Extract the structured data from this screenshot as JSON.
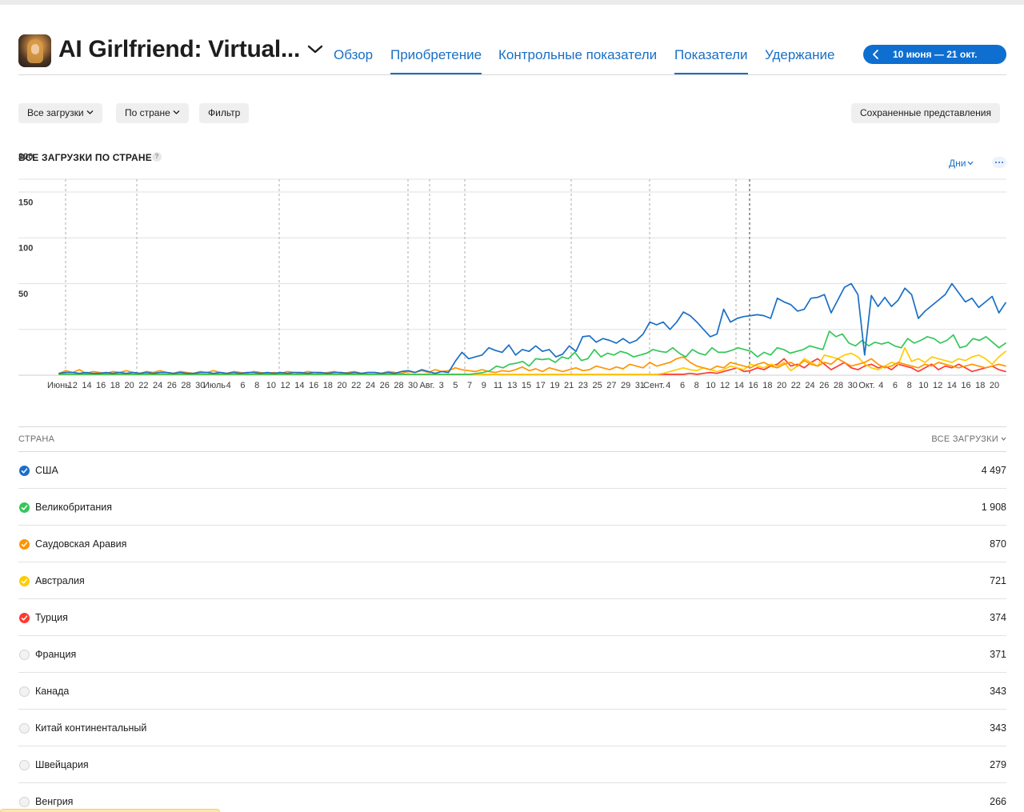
{
  "header": {
    "app_title": "AI Girlfriend: Virtual...",
    "tabs": [
      {
        "label": "Обзор",
        "active": false
      },
      {
        "label": "Приобретение",
        "active": true
      },
      {
        "label": "Контрольные показатели",
        "active": false
      },
      {
        "label": "Показатели",
        "active": true
      },
      {
        "label": "Удержание",
        "active": false
      }
    ],
    "date_range": "10 июня — 21 окт."
  },
  "toolbar": {
    "downloads_label": "Все загрузки",
    "by_country_label": "По стране",
    "filter_label": "Фильтр",
    "saved_views_label": "Сохраненные представления"
  },
  "section": {
    "title": "ВСЕ ЗАГРУЗКИ ПО СТРАНЕ",
    "help": "?",
    "granularity": "Дни"
  },
  "colors": {
    "accent": "#0e6fd1",
    "USA": "#1a6fc5",
    "UK": "#34c759",
    "Saudi": "#ff9500",
    "Australia": "#ffcc00",
    "Turkey": "#ff3b30"
  },
  "chart_data": {
    "type": "line",
    "ylim": [
      0,
      200
    ],
    "yticks": [
      200,
      150,
      100,
      50
    ],
    "x_start": "10 июня",
    "x_end": "21 окт.",
    "xticks": [
      "Июнь",
      "12",
      "14",
      "16",
      "18",
      "20",
      "22",
      "24",
      "26",
      "28",
      "30",
      "Июль",
      "4",
      "6",
      "8",
      "10",
      "12",
      "14",
      "16",
      "18",
      "20",
      "22",
      "24",
      "26",
      "28",
      "30",
      "Авг.",
      "3",
      "5",
      "7",
      "9",
      "11",
      "13",
      "15",
      "17",
      "19",
      "21",
      "23",
      "25",
      "27",
      "29",
      "31",
      "Сент.",
      "4",
      "6",
      "8",
      "10",
      "12",
      "14",
      "16",
      "18",
      "20",
      "22",
      "24",
      "26",
      "28",
      "30",
      "Окт.",
      "4",
      "6",
      "8",
      "10",
      "12",
      "14",
      "16",
      "18",
      "20"
    ],
    "series": [
      {
        "name": "США",
        "color": "#1a6fc5",
        "values": [
          2,
          3,
          3,
          2,
          3,
          2,
          2,
          3,
          2,
          3,
          2,
          3,
          2,
          3,
          2,
          3,
          3,
          2,
          3,
          2,
          2,
          3,
          3,
          2,
          3,
          2,
          3,
          2,
          3,
          3,
          2,
          3,
          2,
          3,
          2,
          3,
          3,
          2,
          3,
          3,
          2,
          3,
          3,
          2,
          3,
          2,
          3,
          3,
          2,
          3,
          2,
          4,
          5,
          3,
          6,
          4,
          2,
          4,
          3,
          15,
          25,
          18,
          20,
          22,
          30,
          27,
          25,
          33,
          22,
          28,
          26,
          32,
          26,
          28,
          20,
          23,
          32,
          26,
          42,
          43,
          36,
          40,
          38,
          35,
          40,
          35,
          38,
          45,
          58,
          55,
          58,
          50,
          58,
          69,
          65,
          58,
          50,
          42,
          45,
          72,
          58,
          62,
          64,
          65,
          66,
          65,
          62,
          84,
          80,
          77,
          70,
          72,
          84,
          85,
          88,
          68,
          82,
          96,
          100,
          88,
          22,
          87,
          75,
          85,
          75,
          82,
          95,
          88,
          62,
          70,
          76,
          82,
          88,
          100,
          90,
          80,
          84,
          74,
          80,
          86,
          68,
          79
        ]
      },
      {
        "name": "Великобритания",
        "color": "#34c759",
        "values": [
          1,
          1,
          1,
          1,
          1,
          1,
          1,
          1,
          1,
          1,
          1,
          1,
          1,
          1,
          1,
          1,
          1,
          1,
          1,
          1,
          1,
          1,
          1,
          1,
          1,
          1,
          1,
          1,
          1,
          1,
          1,
          1,
          1,
          1,
          1,
          1,
          1,
          1,
          1,
          1,
          1,
          1,
          1,
          1,
          1,
          1,
          1,
          1,
          1,
          1,
          1,
          1,
          1,
          1,
          1,
          1,
          1,
          1,
          1,
          1,
          1,
          1,
          1,
          1,
          2,
          3,
          5,
          10,
          8,
          12,
          13,
          15,
          10,
          18,
          17,
          18,
          14,
          20,
          18,
          25,
          16,
          18,
          28,
          20,
          24,
          22,
          26,
          24,
          20,
          22,
          24,
          28,
          26,
          25,
          30,
          24,
          20,
          28,
          24,
          22,
          30,
          25,
          25,
          27,
          30,
          28,
          26,
          20,
          25,
          22,
          30,
          28,
          24,
          26,
          28,
          32,
          30,
          28,
          48,
          42,
          45,
          35,
          32,
          38,
          32,
          36,
          34,
          36,
          32,
          30,
          40,
          35,
          38,
          42,
          40,
          35,
          38,
          44,
          30,
          32,
          40,
          38,
          42,
          36,
          30,
          35
        ]
      },
      {
        "name": "Саудовская Аравия",
        "color": "#ff9500",
        "values": [
          2,
          5,
          3,
          6,
          2,
          4,
          3,
          2,
          4,
          3,
          5,
          3,
          2,
          4,
          3,
          5,
          3,
          2,
          4,
          3,
          2,
          4,
          3,
          5,
          3,
          2,
          4,
          3,
          2,
          4,
          3,
          2,
          3,
          2,
          4,
          3,
          2,
          4,
          3,
          2,
          3,
          4,
          2,
          3,
          4,
          2,
          3,
          3,
          2,
          4,
          3,
          2,
          4,
          3,
          5,
          3,
          6,
          4,
          5,
          8,
          6,
          5,
          4,
          6,
          4,
          3,
          5,
          4,
          6,
          9,
          5,
          7,
          4,
          8,
          6,
          4,
          6,
          8,
          5,
          6,
          10,
          8,
          6,
          9,
          7,
          12,
          10,
          8,
          14,
          10,
          12,
          14,
          18,
          20,
          14,
          10,
          8,
          6,
          10,
          8,
          14,
          12,
          10,
          8,
          12,
          14,
          10,
          8,
          12,
          14,
          10,
          16,
          12,
          10,
          14,
          12,
          18,
          14,
          10,
          12,
          14,
          18,
          12,
          8,
          10,
          14,
          12,
          10,
          8,
          12,
          10,
          14,
          12,
          10,
          8,
          10,
          12,
          10,
          8,
          10,
          12,
          10
        ]
      },
      {
        "name": "Австралия",
        "color": "#ffcc00",
        "values": [
          1,
          1,
          1,
          1,
          1,
          1,
          1,
          1,
          1,
          1,
          1,
          1,
          1,
          1,
          1,
          1,
          1,
          1,
          1,
          1,
          1,
          1,
          1,
          1,
          1,
          1,
          1,
          1,
          1,
          1,
          1,
          1,
          1,
          1,
          1,
          1,
          1,
          1,
          1,
          1,
          1,
          1,
          1,
          1,
          1,
          1,
          1,
          1,
          1,
          1,
          1,
          1,
          1,
          1,
          1,
          1,
          1,
          1,
          1,
          1,
          1,
          1,
          1,
          1,
          1,
          1,
          1,
          1,
          1,
          1,
          1,
          1,
          1,
          1,
          1,
          1,
          1,
          1,
          1,
          1,
          1,
          1,
          1,
          1,
          1,
          1,
          1,
          1,
          1,
          1,
          2,
          4,
          6,
          8,
          6,
          5,
          8,
          6,
          4,
          6,
          10,
          8,
          6,
          12,
          10,
          8,
          12,
          10,
          14,
          5,
          10,
          18,
          14,
          10,
          22,
          20,
          18,
          22,
          24,
          20,
          12,
          8,
          6,
          10,
          14,
          12,
          30,
          15,
          18,
          14,
          20,
          18,
          16,
          14,
          18,
          16,
          20,
          22,
          18,
          12,
          20,
          26
        ]
      },
      {
        "name": "Турция",
        "color": "#ff3b30",
        "values": [
          1,
          1,
          1,
          1,
          1,
          1,
          1,
          1,
          1,
          1,
          1,
          1,
          1,
          1,
          1,
          1,
          1,
          1,
          1,
          1,
          1,
          1,
          1,
          1,
          1,
          1,
          1,
          1,
          1,
          1,
          1,
          1,
          1,
          1,
          1,
          1,
          1,
          1,
          1,
          1,
          1,
          1,
          1,
          1,
          1,
          1,
          1,
          1,
          1,
          1,
          1,
          1,
          1,
          1,
          1,
          1,
          1,
          1,
          1,
          1,
          1,
          1,
          1,
          1,
          1,
          1,
          1,
          1,
          1,
          1,
          1,
          1,
          1,
          1,
          1,
          1,
          1,
          1,
          1,
          1,
          1,
          1,
          1,
          1,
          1,
          1,
          1,
          1,
          1,
          1,
          1,
          1,
          1,
          1,
          2,
          1,
          2,
          3,
          2,
          4,
          6,
          8,
          4,
          5,
          8,
          6,
          10,
          12,
          18,
          10,
          12,
          8,
          14,
          18,
          12,
          6,
          10,
          14,
          8,
          6,
          10,
          12,
          8,
          10,
          6,
          12,
          10,
          8,
          4,
          8,
          12,
          6,
          10,
          8,
          12,
          8,
          4,
          6,
          8,
          10,
          6,
          4
        ]
      }
    ]
  },
  "table": {
    "header_country": "СТРАНА",
    "header_total": "ВСЕ ЗАГРУЗКИ",
    "rows": [
      {
        "country": "США",
        "value": "4 497",
        "checked": true,
        "color": "#1a6fc5"
      },
      {
        "country": "Великобритания",
        "value": "1 908",
        "checked": true,
        "color": "#34c759"
      },
      {
        "country": "Саудовская Аравия",
        "value": "870",
        "checked": true,
        "color": "#ff9500"
      },
      {
        "country": "Австралия",
        "value": "721",
        "checked": true,
        "color": "#ffcc00"
      },
      {
        "country": "Турция",
        "value": "374",
        "checked": true,
        "color": "#ff3b30"
      },
      {
        "country": "Франция",
        "value": "371",
        "checked": false,
        "color": ""
      },
      {
        "country": "Канада",
        "value": "343",
        "checked": false,
        "color": ""
      },
      {
        "country": "Китай континентальный",
        "value": "343",
        "checked": false,
        "color": ""
      },
      {
        "country": "Швейцария",
        "value": "279",
        "checked": false,
        "color": ""
      },
      {
        "country": "Венгрия",
        "value": "266",
        "checked": false,
        "color": ""
      }
    ]
  }
}
